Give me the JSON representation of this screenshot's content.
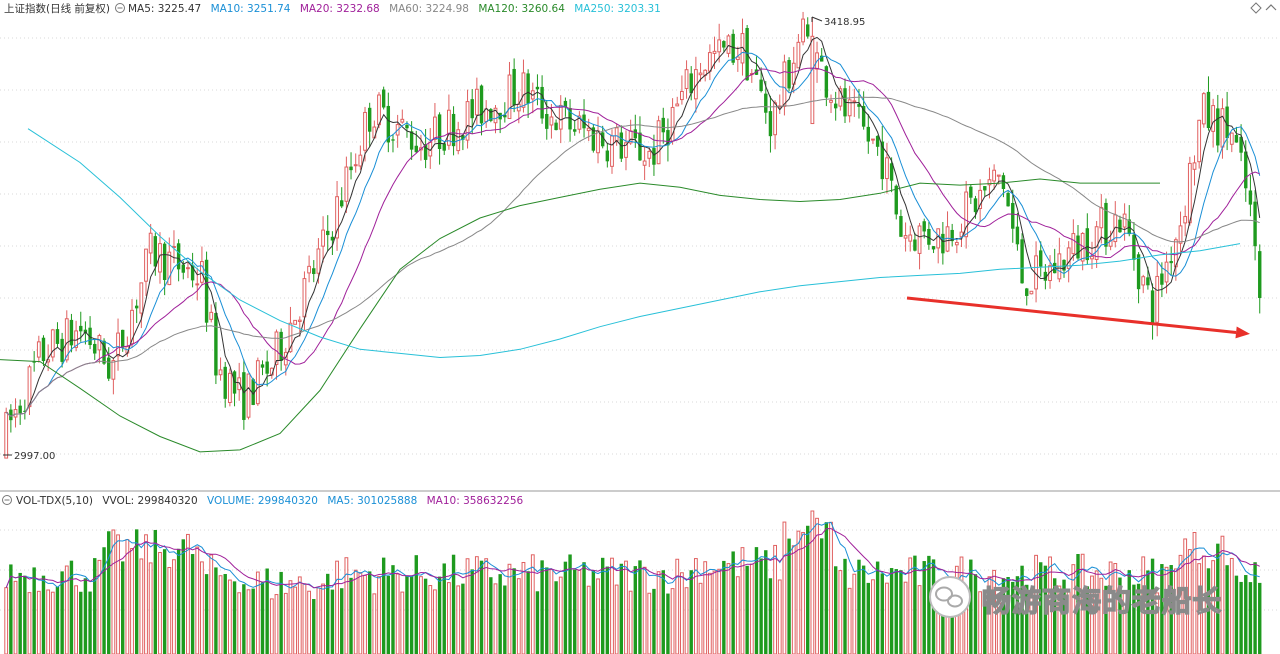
{
  "colors": {
    "up": "#e06060",
    "down": "#1e9a1e",
    "ma5": "#333333",
    "ma10": "#1a8fd6",
    "ma20": "#a0209a",
    "ma60": "#888888",
    "ma120": "#2a8a2a",
    "ma250": "#28c0d8",
    "arrow": "#e8302a",
    "text": "#333333"
  },
  "header": {
    "name": "上证指数(日线 前复权)",
    "ma5": "MA5: 3225.47",
    "ma10": "MA10: 3251.74",
    "ma20": "MA20: 3232.68",
    "ma60": "MA60: 3224.98",
    "ma120": "MA120: 3260.64",
    "ma250": "MA250: 3203.31"
  },
  "volume_header": {
    "name": "VOL-TDX(5,10)",
    "vvol": "VVOL: 299840320",
    "volume": "VOLUME: 299840320",
    "ma5": "MA5: 301025888",
    "ma10": "MA10: 358632256"
  },
  "watermark": "畅游商海的老船长",
  "chart_data": {
    "type": "candlestick",
    "price_range": [
      2960,
      3440
    ],
    "high_label": "3418.95",
    "low_label": "2997.00",
    "high": 3418.95,
    "low": 2997.0,
    "bars": 270,
    "ma120_points": [
      [
        0,
        3090
      ],
      [
        40,
        3088
      ],
      [
        80,
        3062
      ],
      [
        120,
        3035
      ],
      [
        160,
        3015
      ],
      [
        200,
        3000
      ],
      [
        240,
        3002
      ],
      [
        280,
        3018
      ],
      [
        320,
        3060
      ],
      [
        360,
        3120
      ],
      [
        400,
        3178
      ],
      [
        440,
        3208
      ],
      [
        480,
        3228
      ],
      [
        520,
        3240
      ],
      [
        560,
        3248
      ],
      [
        600,
        3256
      ],
      [
        640,
        3262
      ],
      [
        680,
        3258
      ],
      [
        720,
        3250
      ],
      [
        760,
        3246
      ],
      [
        800,
        3244
      ],
      [
        840,
        3246
      ],
      [
        880,
        3252
      ],
      [
        920,
        3262
      ],
      [
        960,
        3260
      ],
      [
        1000,
        3262
      ],
      [
        1040,
        3266
      ],
      [
        1080,
        3262
      ],
      [
        1120,
        3262
      ],
      [
        1160,
        3262
      ]
    ],
    "ma250_points": [
      [
        28,
        3315
      ],
      [
        80,
        3282
      ],
      [
        120,
        3248
      ],
      [
        160,
        3210
      ],
      [
        200,
        3176
      ],
      [
        240,
        3148
      ],
      [
        280,
        3128
      ],
      [
        320,
        3112
      ],
      [
        360,
        3100
      ],
      [
        400,
        3096
      ],
      [
        440,
        3092
      ],
      [
        480,
        3094
      ],
      [
        520,
        3100
      ],
      [
        560,
        3110
      ],
      [
        600,
        3122
      ],
      [
        640,
        3132
      ],
      [
        680,
        3140
      ],
      [
        720,
        3148
      ],
      [
        760,
        3156
      ],
      [
        800,
        3162
      ],
      [
        840,
        3166
      ],
      [
        880,
        3170
      ],
      [
        920,
        3172
      ],
      [
        960,
        3174
      ],
      [
        1000,
        3178
      ],
      [
        1040,
        3180
      ],
      [
        1080,
        3182
      ],
      [
        1120,
        3186
      ],
      [
        1160,
        3192
      ],
      [
        1200,
        3196
      ],
      [
        1240,
        3203
      ]
    ],
    "arrow": {
      "from": [
        907,
        3150
      ],
      "to": [
        1250,
        3115
      ]
    }
  }
}
